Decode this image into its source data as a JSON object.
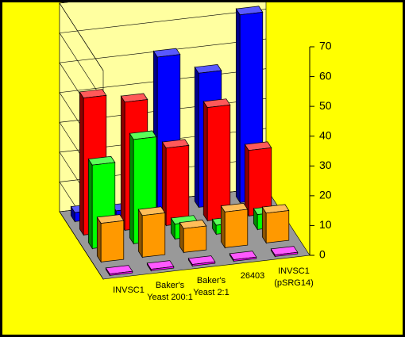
{
  "chart_data": {
    "type": "bar3d",
    "categories": [
      "INVSC1",
      "Baker's Yeast 200:1",
      "Baker's Yeast 2:1",
      "26403",
      "INVSC1 (pSRG14)"
    ],
    "series": [
      {
        "color": "#0000ff",
        "values": [
          3,
          2,
          52,
          45,
          63
        ]
      },
      {
        "color": "#ff0000",
        "values": [
          46,
          43,
          26,
          38,
          22
        ]
      },
      {
        "color": "#00ff00",
        "values": [
          28,
          35,
          5,
          3,
          5
        ]
      },
      {
        "color": "#ff9900",
        "values": [
          13,
          14,
          8,
          12,
          10
        ]
      },
      {
        "color": "#ff00ff",
        "values": [
          0.5,
          0.5,
          0.5,
          0.5,
          0.5
        ]
      }
    ],
    "ylim": [
      0,
      70
    ],
    "yticks": [
      0,
      10,
      20,
      30,
      40,
      50,
      60,
      70
    ],
    "grid": true
  }
}
